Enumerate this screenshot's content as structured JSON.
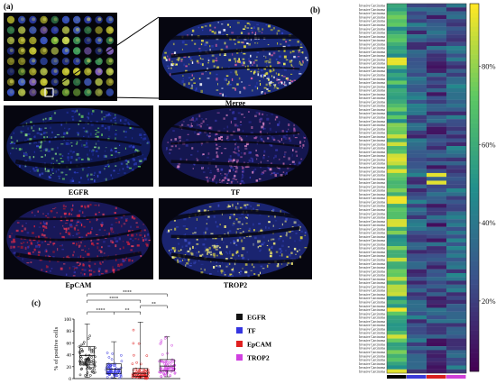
{
  "panels": {
    "a": {
      "label": "(a)"
    },
    "b": {
      "label": "(b)"
    },
    "c": {
      "label": "(c)"
    }
  },
  "images": {
    "merge": "Merge",
    "egfr": "EGFR",
    "tf": "TF",
    "epcam": "EpCAM",
    "trop2": "TROP2"
  },
  "chart_data": [
    {
      "type": "heatmap",
      "id": "b",
      "row_label": "Invasive Carcinoma",
      "rows": 96,
      "columns": 4,
      "colorbar_ticks": [
        "20%",
        "40%",
        "60%",
        "80%"
      ],
      "colorbar_tick_values": [
        20,
        40,
        60,
        80
      ],
      "colorbar_range": [
        2,
        96
      ],
      "column_colors": [
        "#000000",
        "#3a3ad8",
        "#d82020",
        "#d040d8"
      ]
    },
    {
      "type": "scatter",
      "id": "c",
      "ylabel": "% of positive cells",
      "ylim": [
        0,
        100
      ],
      "yticks": [
        0,
        20,
        40,
        60,
        80,
        100
      ],
      "series": [
        {
          "name": "EGFR",
          "color": "#111111",
          "median": 39,
          "q1": 23,
          "q3": 54,
          "min": 2,
          "max": 92
        },
        {
          "name": "TF",
          "color": "#3535e0",
          "median": 16,
          "q1": 8,
          "q3": 25,
          "min": 1,
          "max": 62
        },
        {
          "name": "EpCAM",
          "color": "#e02020",
          "median": 9,
          "q1": 4,
          "q3": 17,
          "min": 0,
          "max": 95
        },
        {
          "name": "TROP2",
          "color": "#d040e0",
          "median": 21,
          "q1": 13,
          "q3": 32,
          "min": 3,
          "max": 70
        }
      ],
      "significance": [
        "****",
        "****",
        "**",
        "****",
        "**"
      ],
      "legend_position": "right"
    }
  ]
}
